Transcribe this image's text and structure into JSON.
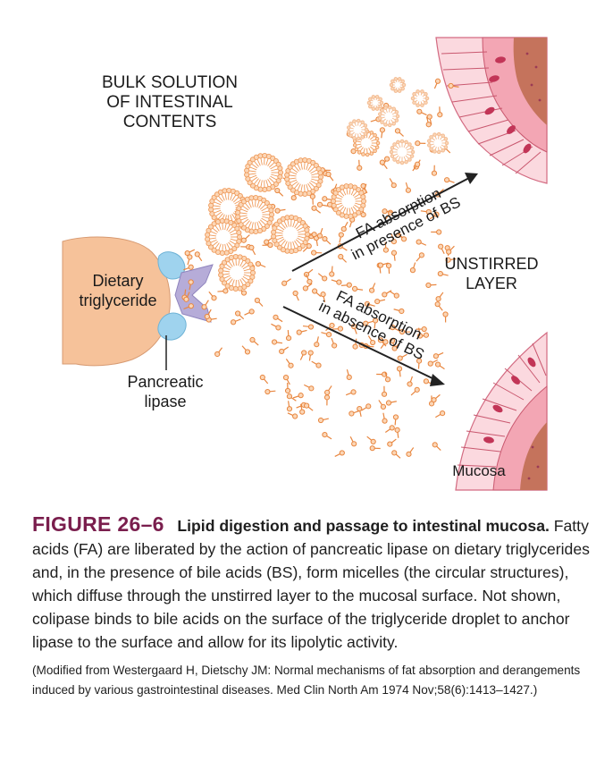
{
  "figure": {
    "labels": {
      "bulk_solution_line1": "BULK SOLUTION",
      "bulk_solution_line2": "OF INTESTINAL",
      "bulk_solution_line3": "CONTENTS",
      "dietary_line1": "Dietary",
      "dietary_line2": "triglyceride",
      "lipase_line1": "Pancreatic",
      "lipase_line2": "lipase",
      "unstirred_line1": "UNSTIRRED",
      "unstirred_line2": "LAYER",
      "arrow_upper_line1": "FA absorption",
      "arrow_upper_line2": "in presence of BS",
      "arrow_lower_line1": "FA absorption",
      "arrow_lower_line2": "in absence of BS",
      "mucosa": "Mucosa"
    },
    "colors": {
      "droplet": "#f6c29a",
      "lipase": "#9fd3ee",
      "colipase": "#b6acd8",
      "fatty_acid": "#e8863f",
      "micelle": "#ef9a5a",
      "mucosa_cell": "#f3a6b4",
      "mucosa_core": "#c5735c",
      "nucleus": "#c23557",
      "arrow": "#222222"
    }
  },
  "caption": {
    "figure_number": "FIGURE 26–6",
    "title": "Lipid digestion and passage to intestinal mucosa.",
    "body": "Fatty acids (FA) are liberated by the action of pancreatic lipase on dietary triglycerides and, in the presence of bile acids (BS), form micelles (the circular structures), which diffuse through the unstirred layer to the mucosal surface. Not shown, colipase binds to bile acids on the surface of the triglyceride droplet to anchor lipase to the surface and allow for its lipolytic activity.",
    "source": "(Modified from Westergaard H, Dietschy JM: Normal mechanisms of fat absorption and derangements induced by various gastrointestinal diseases. Med Clin North Am 1974 Nov;58(6):1413–1427.)"
  }
}
